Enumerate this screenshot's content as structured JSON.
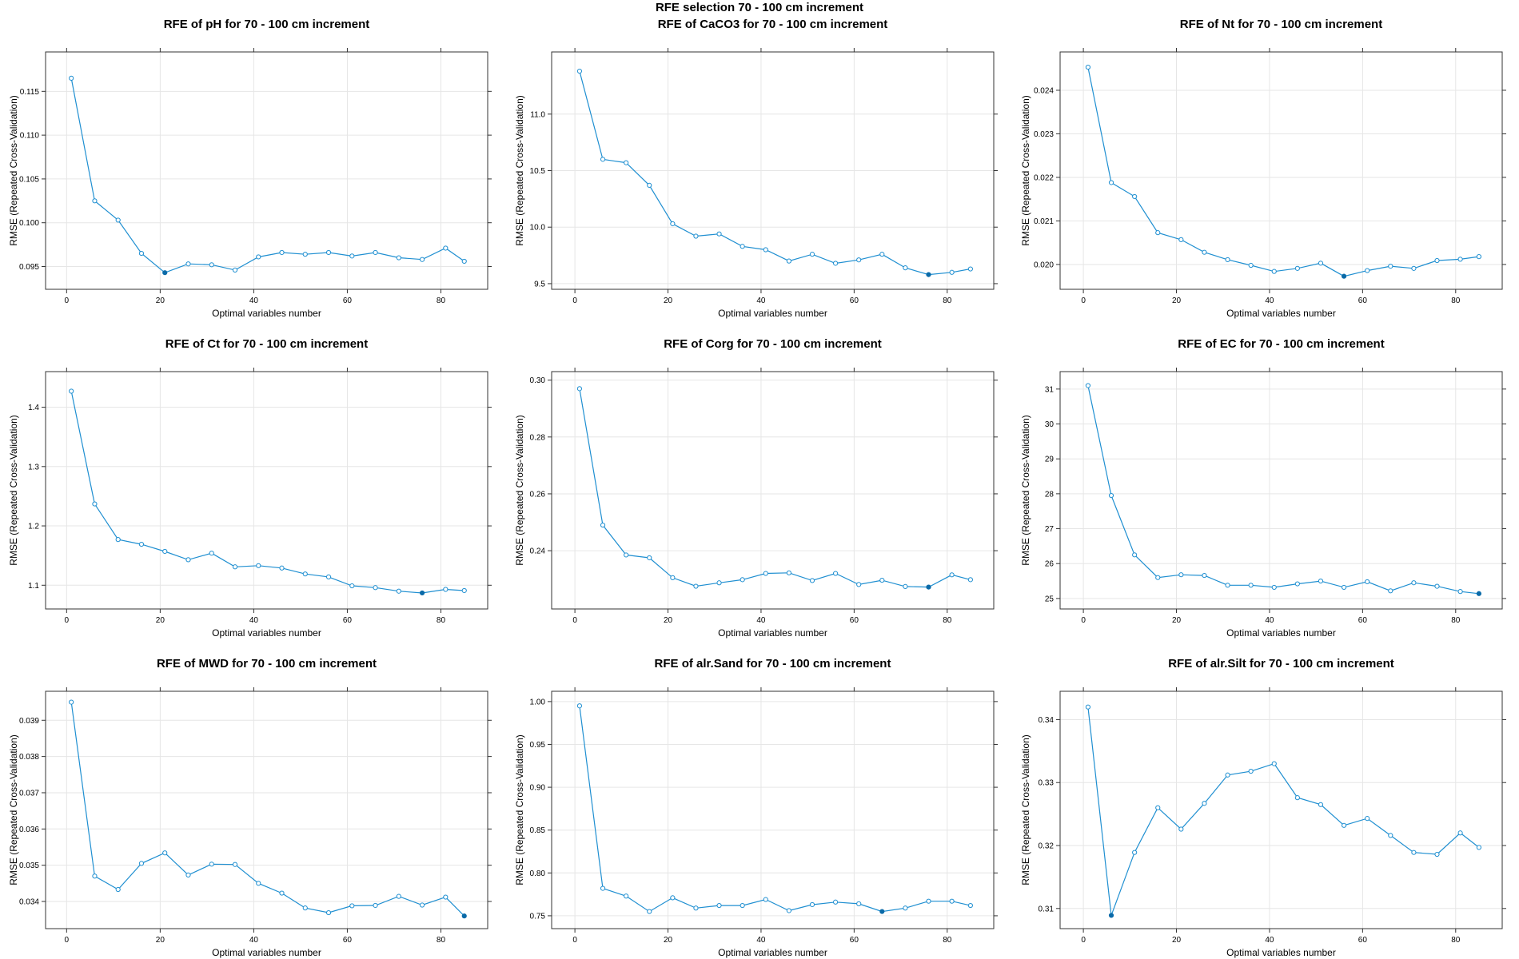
{
  "main_title": "RFE selection 70 - 100 cm increment",
  "colors": {
    "line": "#1f8fd1",
    "best": "#0a6aa8",
    "grid": "#e6e6e6",
    "frame": "#333333"
  },
  "chart_data": [
    {
      "type": "line",
      "title": "RFE of pH for 70 - 100 cm increment",
      "xlabel": "Optimal variables number",
      "ylabel": "RMSE (Repeated Cross-Validation)",
      "xlim": [
        -4.5,
        90
      ],
      "ylim": [
        0.0924,
        0.1195
      ],
      "grid": true,
      "xticks": [
        0,
        20,
        40,
        60,
        80
      ],
      "yticks": [
        0.095,
        0.1,
        0.105,
        0.11,
        0.115
      ],
      "x": [
        1,
        6,
        11,
        16,
        21,
        26,
        31,
        36,
        41,
        46,
        51,
        56,
        61,
        66,
        71,
        76,
        81,
        85
      ],
      "values": [
        0.1165,
        0.1025,
        0.1003,
        0.0965,
        0.0943,
        0.0953,
        0.0952,
        0.0946,
        0.0961,
        0.0966,
        0.0964,
        0.0966,
        0.0962,
        0.0966,
        0.096,
        0.0958,
        0.0971,
        0.0956
      ],
      "best_index": 4
    },
    {
      "type": "line",
      "title": "RFE of CaCO3 for 70 - 100 cm increment",
      "xlabel": "Optimal variables number",
      "ylabel": "RMSE (Repeated Cross-Validation)",
      "xlim": [
        -5,
        90
      ],
      "ylim": [
        9.45,
        11.55
      ],
      "grid": true,
      "xticks": [
        0,
        20,
        40,
        60,
        80
      ],
      "yticks": [
        9.5,
        10.0,
        10.5,
        11.0
      ],
      "x": [
        1,
        6,
        11,
        16,
        21,
        26,
        31,
        36,
        41,
        46,
        51,
        56,
        61,
        66,
        71,
        76,
        81,
        85
      ],
      "values": [
        11.38,
        10.6,
        10.57,
        10.37,
        10.03,
        9.92,
        9.94,
        9.83,
        9.8,
        9.7,
        9.76,
        9.68,
        9.71,
        9.76,
        9.64,
        9.58,
        9.6,
        9.63
      ],
      "best_index": 15
    },
    {
      "type": "line",
      "title": "RFE of Nt for 70 - 100 cm increment",
      "xlabel": "Optimal variables number",
      "ylabel": "RMSE (Repeated Cross-Validation)",
      "xlim": [
        -5,
        90
      ],
      "ylim": [
        0.01943,
        0.02488
      ],
      "grid": true,
      "xticks": [
        0,
        20,
        40,
        60,
        80
      ],
      "yticks": [
        0.02,
        0.021,
        0.022,
        0.023,
        0.024
      ],
      "x": [
        1,
        6,
        11,
        16,
        21,
        26,
        31,
        36,
        41,
        46,
        51,
        56,
        61,
        66,
        71,
        76,
        81,
        85
      ],
      "values": [
        0.02453,
        0.02188,
        0.02156,
        0.02073,
        0.02057,
        0.02028,
        0.02011,
        0.01998,
        0.01984,
        0.01991,
        0.02003,
        0.01973,
        0.01986,
        0.01996,
        0.01991,
        0.02009,
        0.02012,
        0.02018
      ],
      "best_index": 11
    },
    {
      "type": "line",
      "title": "RFE of Ct for 70 - 100 cm increment",
      "xlabel": "Optimal variables number",
      "ylabel": "RMSE (Repeated Cross-Validation)",
      "xlim": [
        -4.5,
        90
      ],
      "ylim": [
        1.06,
        1.46
      ],
      "grid": true,
      "xticks": [
        0,
        20,
        40,
        60,
        80
      ],
      "yticks": [
        1.1,
        1.2,
        1.3,
        1.4
      ],
      "x": [
        1,
        6,
        11,
        16,
        21,
        26,
        31,
        36,
        41,
        46,
        51,
        56,
        61,
        66,
        71,
        76,
        81,
        85
      ],
      "values": [
        1.427,
        1.237,
        1.177,
        1.169,
        1.157,
        1.143,
        1.154,
        1.131,
        1.133,
        1.129,
        1.119,
        1.114,
        1.099,
        1.096,
        1.09,
        1.087,
        1.093,
        1.091
      ],
      "best_index": 15
    },
    {
      "type": "line",
      "title": "RFE of Corg for 70 - 100 cm increment",
      "xlabel": "Optimal variables number",
      "ylabel": "RMSE (Repeated Cross-Validation)",
      "xlim": [
        -5,
        90
      ],
      "ylim": [
        0.2195,
        0.303
      ],
      "grid": true,
      "xticks": [
        0,
        20,
        40,
        60,
        80
      ],
      "yticks": [
        0.24,
        0.26,
        0.28,
        0.3
      ],
      "x": [
        1,
        6,
        11,
        16,
        21,
        26,
        31,
        36,
        41,
        46,
        51,
        56,
        61,
        66,
        71,
        76,
        81,
        85
      ],
      "values": [
        0.297,
        0.249,
        0.2385,
        0.2375,
        0.2305,
        0.2275,
        0.2287,
        0.2298,
        0.232,
        0.2322,
        0.2295,
        0.232,
        0.2281,
        0.2296,
        0.2274,
        0.2272,
        0.2315,
        0.2298
      ],
      "best_index": 15
    },
    {
      "type": "line",
      "title": "RFE of EC for 70 - 100 cm increment",
      "xlabel": "Optimal variables number",
      "ylabel": "RMSE (Repeated Cross-Validation)",
      "xlim": [
        -5,
        90
      ],
      "ylim": [
        24.7,
        31.5
      ],
      "grid": true,
      "xticks": [
        0,
        20,
        40,
        60,
        80
      ],
      "yticks": [
        25,
        26,
        27,
        28,
        29,
        30,
        31
      ],
      "x": [
        1,
        6,
        11,
        16,
        21,
        26,
        31,
        36,
        41,
        46,
        51,
        56,
        61,
        66,
        71,
        76,
        81,
        85
      ],
      "values": [
        31.1,
        27.95,
        26.25,
        25.6,
        25.68,
        25.66,
        25.38,
        25.38,
        25.32,
        25.42,
        25.5,
        25.32,
        25.48,
        25.22,
        25.45,
        25.35,
        25.2,
        25.14
      ],
      "best_index": 17
    },
    {
      "type": "line",
      "title": "RFE of MWD for 70 - 100 cm increment",
      "xlabel": "Optimal variables number",
      "ylabel": "RMSE (Repeated Cross-Validation)",
      "xlim": [
        -4.5,
        90
      ],
      "ylim": [
        0.03325,
        0.0398
      ],
      "grid": true,
      "xticks": [
        0,
        20,
        40,
        60,
        80
      ],
      "yticks": [
        0.034,
        0.035,
        0.036,
        0.037,
        0.038,
        0.039
      ],
      "x": [
        1,
        6,
        11,
        16,
        21,
        26,
        31,
        36,
        41,
        46,
        51,
        56,
        61,
        66,
        71,
        76,
        81,
        85
      ],
      "values": [
        0.0395,
        0.0347,
        0.03433,
        0.03505,
        0.03534,
        0.03473,
        0.03503,
        0.03502,
        0.0345,
        0.03423,
        0.03382,
        0.03369,
        0.03388,
        0.03389,
        0.03414,
        0.0339,
        0.03412,
        0.0336
      ],
      "best_index": 17
    },
    {
      "type": "line",
      "title": "RFE of alr.Sand for 70 - 100 cm increment",
      "xlabel": "Optimal variables number",
      "ylabel": "RMSE (Repeated Cross-Validation)",
      "xlim": [
        -5,
        90
      ],
      "ylim": [
        0.735,
        1.012
      ],
      "grid": true,
      "xticks": [
        0,
        20,
        40,
        60,
        80
      ],
      "yticks": [
        0.75,
        0.8,
        0.85,
        0.9,
        0.95,
        1.0
      ],
      "x": [
        1,
        6,
        11,
        16,
        21,
        26,
        31,
        36,
        41,
        46,
        51,
        56,
        61,
        66,
        71,
        76,
        81,
        85
      ],
      "values": [
        0.995,
        0.782,
        0.773,
        0.755,
        0.771,
        0.759,
        0.762,
        0.762,
        0.769,
        0.756,
        0.763,
        0.766,
        0.764,
        0.755,
        0.759,
        0.767,
        0.767,
        0.762
      ],
      "best_index": 13
    },
    {
      "type": "line",
      "title": "RFE of alr.Silt for 70 - 100 cm increment",
      "xlabel": "Optimal variables number",
      "ylabel": "RMSE (Repeated Cross-Validation)",
      "xlim": [
        -5,
        90
      ],
      "ylim": [
        0.3068,
        0.3445
      ],
      "grid": true,
      "xticks": [
        0,
        20,
        40,
        60,
        80
      ],
      "yticks": [
        0.31,
        0.32,
        0.33,
        0.34
      ],
      "x": [
        1,
        6,
        11,
        16,
        21,
        26,
        31,
        36,
        41,
        46,
        51,
        56,
        61,
        66,
        71,
        76,
        81,
        85
      ],
      "values": [
        0.342,
        0.3089,
        0.3189,
        0.326,
        0.3226,
        0.3267,
        0.3312,
        0.3318,
        0.333,
        0.3276,
        0.3265,
        0.3232,
        0.3243,
        0.3216,
        0.3189,
        0.3186,
        0.322,
        0.3197
      ],
      "best_index": 1
    }
  ]
}
